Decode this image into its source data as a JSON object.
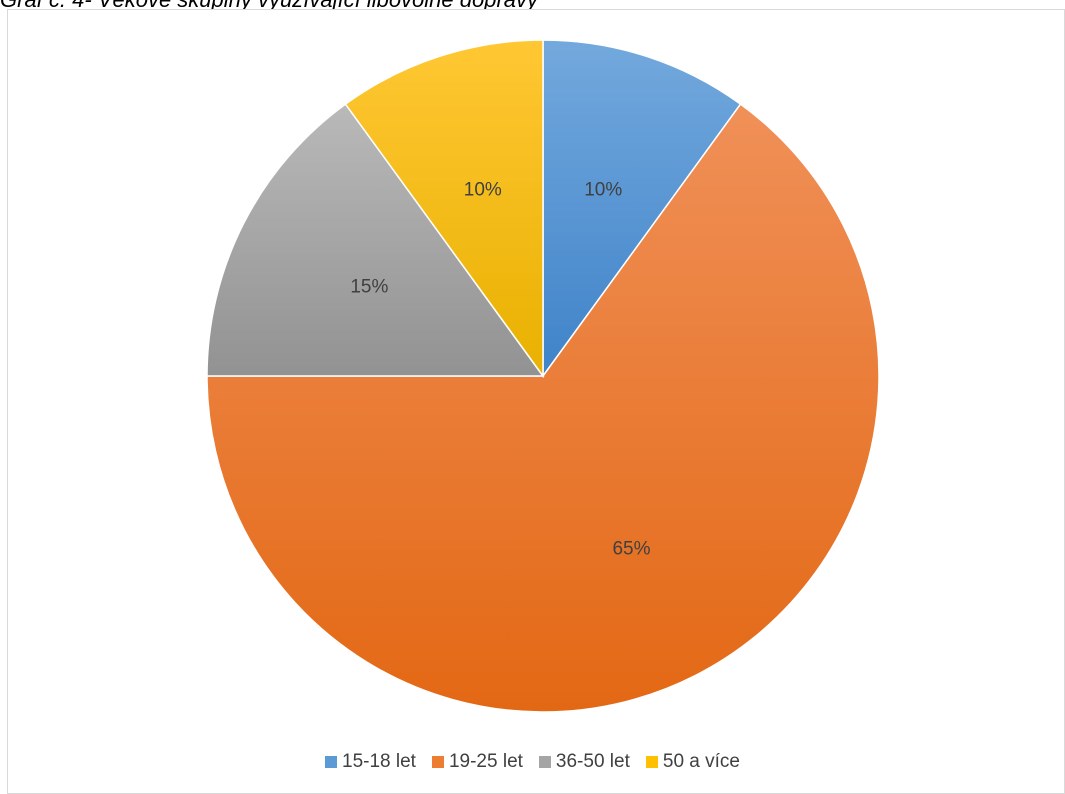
{
  "caption": "Graf č. 4- Věkové skupiny využívající libovolné dopravy",
  "chart_data": {
    "type": "pie",
    "title": "",
    "categories": [
      "15-18 let",
      "19-25 let",
      "36-50 let",
      "50 a více"
    ],
    "values": [
      10,
      65,
      15,
      10
    ],
    "labels": [
      "10%",
      "65%",
      "15%",
      "10%"
    ],
    "colors": [
      "#5b9bd5",
      "#ed7d31",
      "#a5a5a5",
      "#ffc000"
    ],
    "start_angle_deg": 0,
    "direction": "clockwise",
    "legend_position": "bottom"
  }
}
